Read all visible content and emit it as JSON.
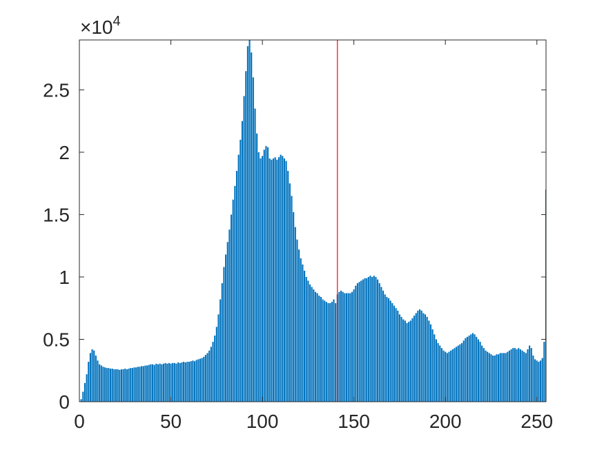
{
  "chart_data": {
    "type": "bar",
    "x": [
      0,
      1,
      2,
      3,
      4,
      5,
      6,
      7,
      8,
      9,
      10,
      11,
      12,
      13,
      14,
      15,
      16,
      17,
      18,
      19,
      20,
      21,
      22,
      23,
      24,
      25,
      26,
      27,
      28,
      29,
      30,
      31,
      32,
      33,
      34,
      35,
      36,
      37,
      38,
      39,
      40,
      41,
      42,
      43,
      44,
      45,
      46,
      47,
      48,
      49,
      50,
      51,
      52,
      53,
      54,
      55,
      56,
      57,
      58,
      59,
      60,
      61,
      62,
      63,
      64,
      65,
      66,
      67,
      68,
      69,
      70,
      71,
      72,
      73,
      74,
      75,
      76,
      77,
      78,
      79,
      80,
      81,
      82,
      83,
      84,
      85,
      86,
      87,
      88,
      89,
      90,
      91,
      92,
      93,
      94,
      95,
      96,
      97,
      98,
      99,
      100,
      101,
      102,
      103,
      104,
      105,
      106,
      107,
      108,
      109,
      110,
      111,
      112,
      113,
      114,
      115,
      116,
      117,
      118,
      119,
      120,
      121,
      122,
      123,
      124,
      125,
      126,
      127,
      128,
      129,
      130,
      131,
      132,
      133,
      134,
      135,
      136,
      137,
      138,
      139,
      140,
      141,
      142,
      143,
      144,
      145,
      146,
      147,
      148,
      149,
      150,
      151,
      152,
      153,
      154,
      155,
      156,
      157,
      158,
      159,
      160,
      161,
      162,
      163,
      164,
      165,
      166,
      167,
      168,
      169,
      170,
      171,
      172,
      173,
      174,
      175,
      176,
      177,
      178,
      179,
      180,
      181,
      182,
      183,
      184,
      185,
      186,
      187,
      188,
      189,
      190,
      191,
      192,
      193,
      194,
      195,
      196,
      197,
      198,
      199,
      200,
      201,
      202,
      203,
      204,
      205,
      206,
      207,
      208,
      209,
      210,
      211,
      212,
      213,
      214,
      215,
      216,
      217,
      218,
      219,
      220,
      221,
      222,
      223,
      224,
      225,
      226,
      227,
      228,
      229,
      230,
      231,
      232,
      233,
      234,
      235,
      236,
      237,
      238,
      239,
      240,
      241,
      242,
      243,
      244,
      245,
      246,
      247,
      248,
      249,
      250,
      251,
      252,
      253,
      254,
      255
    ],
    "values": [
      0,
      200,
      800,
      1500,
      2200,
      3200,
      3900,
      4200,
      4100,
      3700,
      3300,
      3000,
      2900,
      2800,
      2750,
      2700,
      2700,
      2650,
      2650,
      2600,
      2600,
      2600,
      2550,
      2600,
      2600,
      2650,
      2600,
      2650,
      2700,
      2700,
      2750,
      2750,
      2800,
      2800,
      2850,
      2850,
      2900,
      2900,
      2950,
      3000,
      3000,
      2950,
      3050,
      3000,
      3050,
      3000,
      3050,
      3100,
      3050,
      3100,
      3050,
      3100,
      3100,
      3050,
      3150,
      3100,
      3150,
      3200,
      3150,
      3200,
      3200,
      3250,
      3300,
      3250,
      3350,
      3400,
      3450,
      3500,
      3600,
      3750,
      3900,
      4100,
      4400,
      4800,
      5300,
      6000,
      7000,
      8200,
      9500,
      10800,
      11800,
      12800,
      13800,
      15000,
      16200,
      17300,
      18500,
      19800,
      21000,
      22500,
      24500,
      26500,
      28500,
      29000,
      28000,
      26000,
      23500,
      21500,
      20000,
      19500,
      19700,
      20200,
      20500,
      20400,
      19500,
      19400,
      19500,
      19600,
      19400,
      19600,
      19800,
      19700,
      19500,
      19300,
      18500,
      17500,
      16500,
      15200,
      14000,
      13000,
      12200,
      11500,
      11000,
      10500,
      10000,
      9700,
      9400,
      9200,
      9000,
      8800,
      8700,
      8500,
      8400,
      8200,
      8100,
      8000,
      7900,
      7900,
      8000,
      8200,
      7900,
      8600,
      8800,
      8900,
      8800,
      8700,
      8700,
      8700,
      8700,
      8800,
      9000,
      9300,
      9500,
      9600,
      9700,
      9800,
      9900,
      9900,
      10000,
      10100,
      10000,
      10100,
      10000,
      9800,
      9500,
      9200,
      8900,
      8600,
      8400,
      8300,
      8100,
      7900,
      7700,
      7500,
      7300,
      7000,
      6800,
      6600,
      6500,
      6300,
      6400,
      6500,
      6700,
      6900,
      7100,
      7300,
      7400,
      7300,
      7100,
      7000,
      6800,
      6500,
      6200,
      5800,
      5400,
      5000,
      4700,
      4500,
      4300,
      4100,
      4000,
      3900,
      4000,
      4100,
      4200,
      4300,
      4400,
      4500,
      4600,
      4700,
      4900,
      5100,
      5200,
      5300,
      5400,
      5500,
      5400,
      5200,
      5000,
      4800,
      4500,
      4300,
      4100,
      4000,
      3900,
      3800,
      3700,
      3700,
      3800,
      3800,
      3900,
      3900,
      3900,
      3900,
      4000,
      4100,
      4200,
      4300,
      4300,
      4200,
      4300,
      4200,
      4100,
      4000,
      3900,
      4200,
      4500,
      4300,
      3700,
      3400,
      3300,
      3200,
      3300,
      3500,
      4800,
      17000
    ],
    "color": "#0072bd",
    "xlim": [
      0,
      255
    ],
    "xticks": [
      0,
      50,
      100,
      150,
      200,
      250
    ],
    "ylim": [
      0,
      29000
    ],
    "yticks": [
      0,
      {
        "value": 5000,
        "label": "0.5"
      },
      {
        "value": 10000,
        "label": "1"
      },
      {
        "value": 15000,
        "label": "1.5"
      },
      {
        "value": 20000,
        "label": "2"
      },
      {
        "value": 25000,
        "label": "2.5"
      }
    ],
    "y_multiplier": {
      "base": "×10",
      "exponent": "4"
    },
    "vline": {
      "x": 141,
      "color": "#ff0000"
    }
  }
}
